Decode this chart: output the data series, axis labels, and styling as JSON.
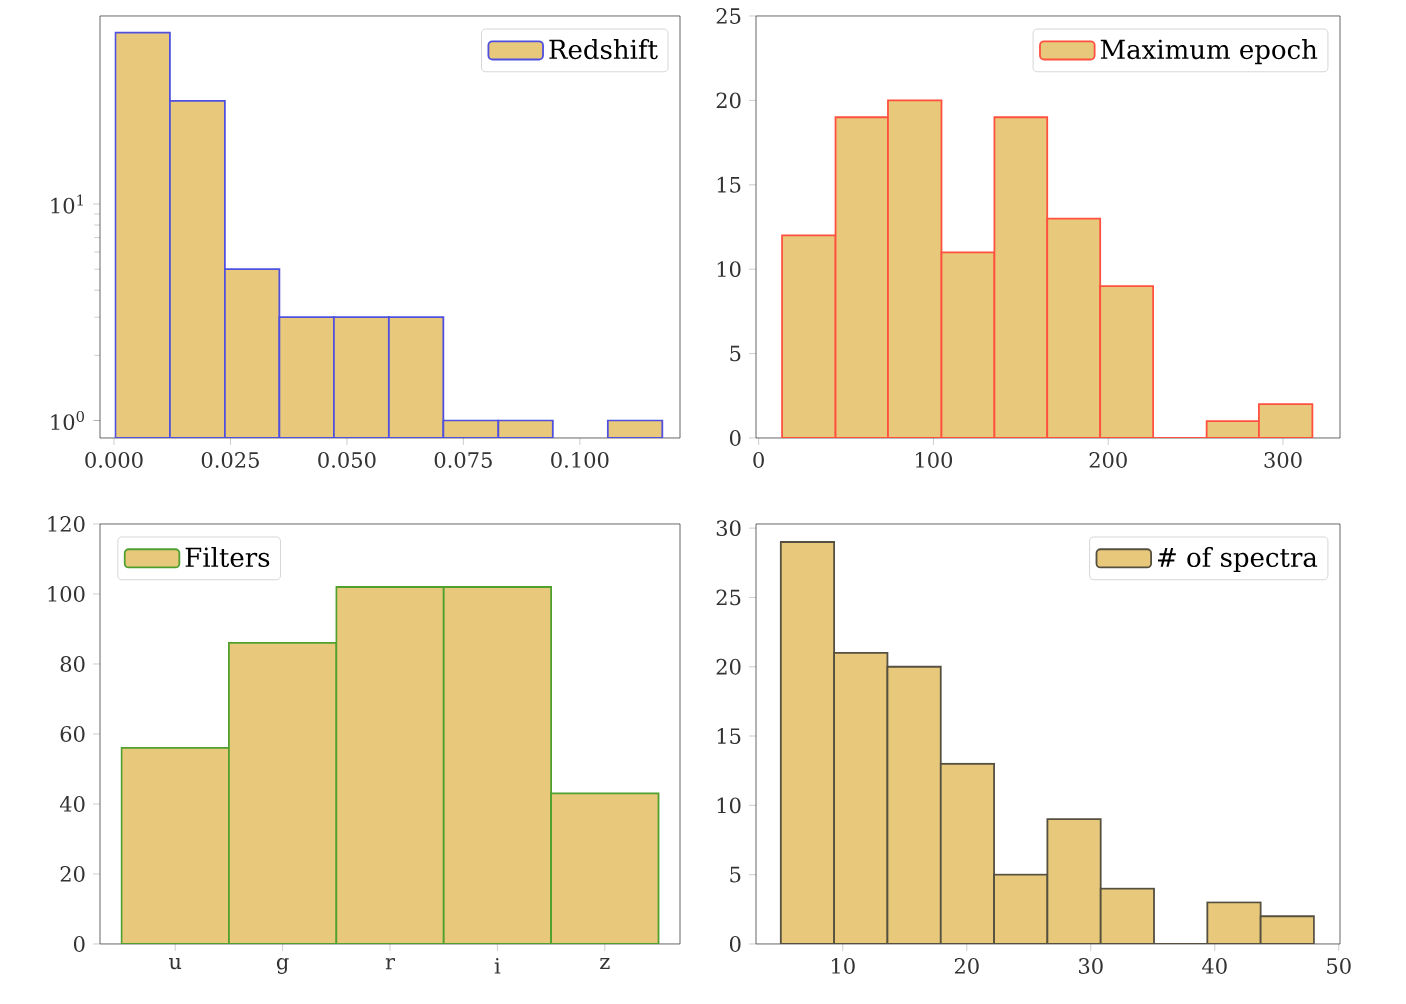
{
  "chart_data": [
    {
      "type": "histogram",
      "log": "y",
      "legend": "top right",
      "bins": [
        0.0003,
        0.012,
        0.0238,
        0.0355,
        0.0472,
        0.059,
        0.0707,
        0.0825,
        0.0942,
        0.106,
        0.1177
      ],
      "series": [
        {
          "name": "Redshift",
          "color": "#e8c87a",
          "values": [
            62,
            30,
            5,
            3,
            3,
            3,
            1,
            1,
            null,
            1
          ]
        }
      ],
      "xlim": [
        -0.003,
        0.1215
      ],
      "ylim": [
        0.83,
        74
      ],
      "xticks": [
        {
          "value": 0,
          "label": "0.000"
        },
        0.025,
        {
          "value": 0.05,
          "label": "0.050"
        },
        0.075,
        {
          "value": 0.1,
          "label": "0.100"
        }
      ],
      "yticks": [
        {
          "value": 1,
          "label": "10$^{0}$"
        },
        {
          "value": 10,
          "label": "10$^{1}$"
        }
      ]
    },
    {
      "type": "histogram",
      "legend": "top right",
      "bins": [
        13.4,
        44,
        74,
        104.6,
        134.9,
        165.1,
        195.4,
        225.7,
        256.3,
        286.2,
        316.8
      ],
      "series": [
        {
          "name": "Maximum epoch",
          "color": "#e8c87a",
          "values": [
            12,
            19,
            20,
            11,
            19,
            13,
            9,
            0,
            1,
            2
          ]
        }
      ],
      "xlim": [
        -1.5,
        332.6
      ],
      "ylim": [
        0,
        25
      ],
      "xticks": [
        0,
        100,
        200,
        300
      ],
      "yticks": [
        0,
        5,
        10,
        15,
        20,
        25
      ]
    },
    {
      "type": "bar",
      "legend": "top left",
      "categories": [
        "u",
        "g",
        "r",
        "i",
        "z"
      ],
      "series": [
        {
          "name": "Filters",
          "color": "#e8c87a",
          "values": [
            56,
            86,
            102,
            102,
            43
          ]
        }
      ],
      "ylim": [
        0,
        120
      ],
      "yticks": [
        0,
        20,
        40,
        60,
        80,
        100,
        120
      ]
    },
    {
      "type": "histogram",
      "legend": "top right",
      "bins": [
        5,
        9.3,
        13.6,
        17.9,
        22.2,
        26.5,
        30.8,
        35.1,
        39.4,
        43.7,
        48
      ],
      "series": [
        {
          "name": "# of spectra",
          "color": "#e8c87a",
          "values": [
            29,
            21,
            20,
            13,
            5,
            9,
            4,
            0,
            3,
            2
          ]
        }
      ],
      "xlim": [
        3.0,
        50.1
      ],
      "ylim": [
        0,
        30.3
      ],
      "xticks": [
        10,
        20,
        30,
        40,
        50
      ],
      "yticks": [
        0,
        5,
        10,
        15,
        20,
        25,
        30
      ]
    }
  ]
}
